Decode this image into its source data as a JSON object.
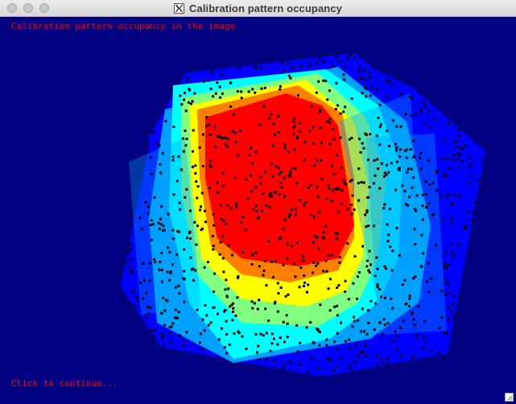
{
  "window": {
    "title": "Calibration pattern occupancy",
    "app_icon": "x11-icon"
  },
  "canvas": {
    "background": "#000080",
    "text_color": "#ff0000",
    "heading": "Calibration pattern occupancy in the image",
    "prompt": "Click to continue..."
  },
  "heatmap": {
    "colormap": "jet",
    "colors": [
      "#0000ff",
      "#00a0ff",
      "#00ffff",
      "#80ff80",
      "#ffff00",
      "#ff8000",
      "#ff0000"
    ],
    "point_color": "#000000"
  }
}
